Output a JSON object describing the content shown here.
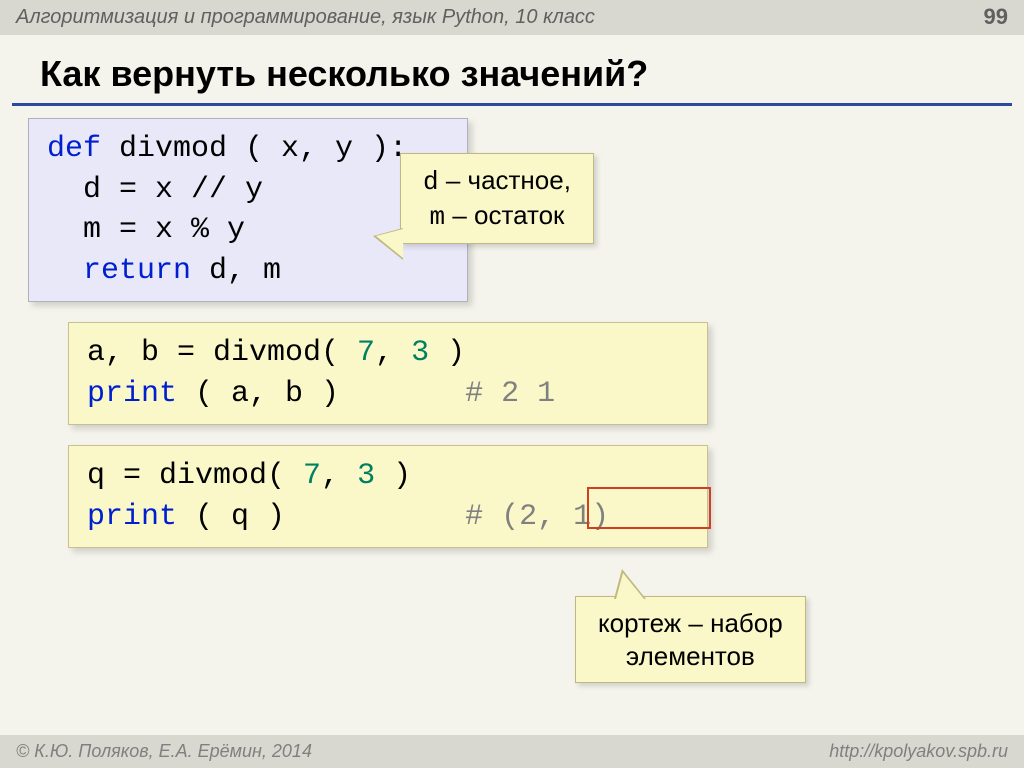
{
  "header": {
    "breadcrumb": "Алгоритмизация и программирование, язык Python, 10 класс",
    "page_number": "99"
  },
  "title": "Как вернуть несколько значений?",
  "callouts": {
    "c1_line1_a": "d",
    "c1_line1_b": " – частное,",
    "c1_line2_a": "m",
    "c1_line2_b": " – остаток",
    "c2_line1": "кортеж – набор",
    "c2_line2": "элементов"
  },
  "code1": {
    "l1_kw": "def",
    "l1_rest": " divmod ( x, y ):",
    "l2": "  d = x // y",
    "l3": "  m = x % y",
    "l4_pre": "  ",
    "l4_kw": "return",
    "l4_rest": " d, m"
  },
  "code2": {
    "l1_a": "a, b = divmod( ",
    "l1_n1": "7",
    "l1_b": ", ",
    "l1_n2": "3",
    "l1_c": " )",
    "l2_kw": "print",
    "l2_a": " ( a, b )       ",
    "l2_cmt": "# 2 1"
  },
  "code3": {
    "l1_a": "q = divmod( ",
    "l1_n1": "7",
    "l1_b": ", ",
    "l1_n2": "3",
    "l1_c": " )",
    "l2_kw": "print",
    "l2_a": " ( q )          ",
    "l2_cmt": "# (2, 1)"
  },
  "footer": {
    "left": "© К.Ю. Поляков, Е.А. Ерёмин, 2014",
    "right": "http://kpolyakov.spb.ru"
  },
  "colors": {
    "background": "#f4f4ec",
    "header_bg": "#d8d8d0",
    "title_underline": "#2a4aa0",
    "code_blue_bg": "#e8e8f8",
    "code_yellow_bg": "#faf8c8",
    "keyword": "#0020d0",
    "number": "#008060",
    "comment": "#808080",
    "red_box": "#d04020"
  }
}
